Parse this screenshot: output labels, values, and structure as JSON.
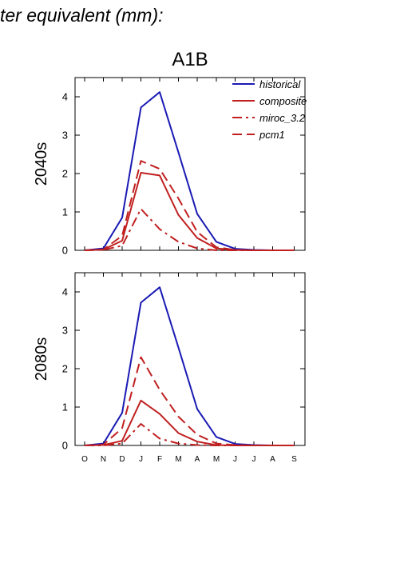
{
  "header": {
    "title": "ter equivalent (mm):"
  },
  "chart_data": [
    {
      "type": "line",
      "title": "A1B",
      "ylabel": "2040s",
      "xlabel": "",
      "categories": [
        "O",
        "N",
        "D",
        "J",
        "F",
        "M",
        "A",
        "M",
        "J",
        "J",
        "A",
        "S"
      ],
      "ylim": [
        0,
        4.5
      ],
      "yticks": [
        0,
        1,
        2,
        3,
        4
      ],
      "legend_position": "top-right",
      "series": [
        {
          "name": "historical",
          "color": "#1a1ab4",
          "dash": "solid",
          "values": [
            0,
            0.05,
            0.85,
            3.72,
            4.12,
            2.55,
            0.95,
            0.22,
            0.04,
            0.01,
            0,
            0
          ]
        },
        {
          "name": "composite",
          "color": "#c02020",
          "dash": "solid",
          "values": [
            0,
            0.02,
            0.25,
            2.02,
            1.95,
            0.92,
            0.32,
            0.05,
            0.01,
            0,
            0,
            0
          ]
        },
        {
          "name": "miroc_3.2",
          "color": "#c02020",
          "dash": "dashdot",
          "values": [
            0,
            0.01,
            0.12,
            1.08,
            0.55,
            0.22,
            0.05,
            0,
            0,
            0,
            0,
            0
          ]
        },
        {
          "name": "pcm1",
          "color": "#c02020",
          "dash": "dashed",
          "values": [
            0,
            0.02,
            0.38,
            2.33,
            2.12,
            1.35,
            0.48,
            0.08,
            0.01,
            0,
            0,
            0
          ]
        }
      ]
    },
    {
      "type": "line",
      "title": "",
      "ylabel": "2080s",
      "xlabel": "",
      "categories": [
        "O",
        "N",
        "D",
        "J",
        "F",
        "M",
        "A",
        "M",
        "J",
        "J",
        "A",
        "S"
      ],
      "ylim": [
        0,
        4.5
      ],
      "yticks": [
        0,
        1,
        2,
        3,
        4
      ],
      "series": [
        {
          "name": "historical",
          "color": "#1a1ab4",
          "dash": "solid",
          "values": [
            0,
            0.05,
            0.85,
            3.72,
            4.12,
            2.55,
            0.95,
            0.22,
            0.04,
            0.01,
            0,
            0
          ]
        },
        {
          "name": "composite",
          "color": "#c02020",
          "dash": "solid",
          "values": [
            0,
            0.01,
            0.12,
            1.17,
            0.82,
            0.32,
            0.1,
            0.01,
            0,
            0,
            0,
            0
          ]
        },
        {
          "name": "miroc_3.2",
          "color": "#c02020",
          "dash": "dashdot",
          "values": [
            0,
            0,
            0.05,
            0.56,
            0.18,
            0.05,
            0.01,
            0,
            0,
            0,
            0,
            0
          ]
        },
        {
          "name": "pcm1",
          "color": "#c02020",
          "dash": "dashed",
          "values": [
            0,
            0.02,
            0.45,
            2.3,
            1.45,
            0.75,
            0.28,
            0.05,
            0.01,
            0,
            0,
            0
          ]
        }
      ]
    }
  ]
}
